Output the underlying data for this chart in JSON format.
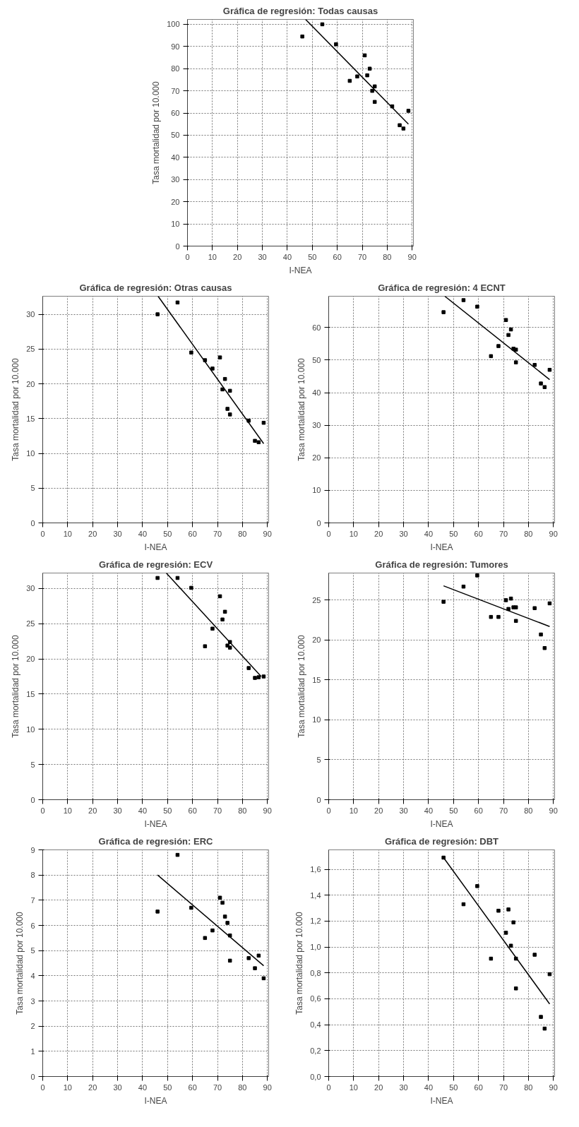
{
  "chart_data": [
    {
      "type": "scatter",
      "title": "Gráfica de regresión: Todas causas",
      "xlabel": "I-NEA",
      "ylabel": "Tasa mortalidad por 10.000",
      "xlim": [
        0,
        90.5
      ],
      "xticks": [
        0,
        10,
        20,
        30,
        40,
        50,
        60,
        70,
        80,
        90
      ],
      "ylim": [
        0,
        102.2
      ],
      "yticks": [
        0,
        10,
        20,
        30,
        40,
        50,
        60,
        70,
        80,
        90,
        100
      ],
      "grid": true,
      "series": [
        {
          "marker": "square",
          "color": "#000000",
          "x": [
            46,
            54,
            59.5,
            65,
            68,
            71,
            72,
            73,
            74,
            75,
            75,
            82,
            85,
            86.5,
            88.5
          ],
          "values": [
            94.5,
            100,
            91,
            74.5,
            76.5,
            86,
            77,
            80,
            70,
            72,
            65,
            63,
            54.5,
            53,
            61
          ]
        },
        {
          "type": "line",
          "color": "#000000",
          "x": [
            47.3,
            88.5
          ],
          "values": [
            102.2,
            55
          ]
        }
      ]
    },
    {
      "type": "scatter",
      "title": "Gráfica de regresión: Otras causas",
      "xlabel": "I-NEA",
      "ylabel": "Tasa mortalidad por 10.000",
      "xlim": [
        0,
        90.5
      ],
      "xticks": [
        0,
        10,
        20,
        30,
        40,
        50,
        60,
        70,
        80,
        90
      ],
      "ylim": [
        0,
        32.6
      ],
      "yticks": [
        0,
        5,
        10,
        15,
        20,
        25,
        30
      ],
      "grid": true,
      "series": [
        {
          "marker": "square",
          "color": "#000000",
          "x": [
            46,
            54,
            59.5,
            65,
            68,
            71,
            72,
            73,
            74,
            75,
            75,
            82.5,
            85,
            86.5,
            88.5
          ],
          "values": [
            30,
            31.7,
            24.5,
            23.4,
            22.2,
            23.8,
            19.2,
            20.7,
            16.4,
            19,
            15.6,
            14.7,
            11.8,
            11.6,
            14.4
          ]
        },
        {
          "type": "line",
          "color": "#000000",
          "x": [
            46.2,
            88.5
          ],
          "values": [
            32.6,
            11.4
          ]
        }
      ]
    },
    {
      "type": "scatter",
      "title": "Gráfica de regresión: 4 ECNT",
      "xlabel": "I-NEA",
      "ylabel": "Tasa mortalidad por 10.000",
      "xlim": [
        0,
        90.5
      ],
      "xticks": [
        0,
        10,
        20,
        30,
        40,
        50,
        60,
        70,
        80,
        90
      ],
      "ylim": [
        0,
        69.6
      ],
      "yticks": [
        0,
        10,
        20,
        30,
        40,
        50,
        60
      ],
      "grid": true,
      "series": [
        {
          "marker": "square",
          "color": "#000000",
          "x": [
            46,
            54,
            59.5,
            65,
            68,
            71,
            72,
            73,
            74,
            75,
            75,
            82.5,
            85,
            86.5,
            88.5
          ],
          "values": [
            64.7,
            68.4,
            66.4,
            51.2,
            54.3,
            62.3,
            57.7,
            59.4,
            53.5,
            53.2,
            49.3,
            48.5,
            42.8,
            41.7,
            47
          ]
        },
        {
          "type": "line",
          "color": "#000000",
          "x": [
            46.5,
            88.5
          ],
          "values": [
            69.6,
            44
          ]
        }
      ]
    },
    {
      "type": "scatter",
      "title": "Gráfica de regresión: ECV",
      "xlabel": "I-NEA",
      "ylabel": "Tasa mortalidad por 10.000",
      "xlim": [
        0,
        90.5
      ],
      "xticks": [
        0,
        10,
        20,
        30,
        40,
        50,
        60,
        70,
        80,
        90
      ],
      "ylim": [
        0,
        32.2
      ],
      "yticks": [
        0,
        5,
        10,
        15,
        20,
        25,
        30
      ],
      "grid": true,
      "series": [
        {
          "marker": "square",
          "color": "#000000",
          "x": [
            46,
            54,
            59.5,
            65,
            68,
            71,
            72,
            73,
            74,
            75,
            75,
            82.5,
            85,
            86.5,
            88.5
          ],
          "values": [
            31.5,
            31.5,
            30.1,
            21.8,
            24.3,
            28.9,
            25.6,
            26.7,
            21.9,
            22.4,
            21.6,
            18.7,
            17.3,
            17.4,
            17.5
          ]
        },
        {
          "type": "line",
          "color": "#000000",
          "x": [
            49.5,
            87.5
          ],
          "values": [
            32.2,
            17.5
          ]
        }
      ]
    },
    {
      "type": "scatter",
      "title": "Gráfica de regresión: Tumores",
      "xlabel": "I-NEA",
      "ylabel": "Tasa mortalidad por 10.000",
      "xlim": [
        0,
        90.5
      ],
      "xticks": [
        0,
        10,
        20,
        30,
        40,
        50,
        60,
        70,
        80,
        90
      ],
      "ylim": [
        0,
        28.4
      ],
      "yticks": [
        0,
        5,
        10,
        15,
        20,
        25
      ],
      "grid": true,
      "series": [
        {
          "marker": "square",
          "color": "#000000",
          "x": [
            46,
            54,
            59.5,
            65,
            68,
            71,
            72,
            73,
            74,
            75,
            75,
            82.5,
            85,
            86.5,
            88.5
          ],
          "values": [
            24.8,
            26.7,
            28.1,
            22.9,
            22.9,
            25,
            23.9,
            25.2,
            24.1,
            24.1,
            22.4,
            24,
            20.7,
            19,
            24.6
          ]
        },
        {
          "type": "line",
          "color": "#000000",
          "x": [
            46,
            88.5
          ],
          "values": [
            26.8,
            21.7
          ]
        }
      ]
    },
    {
      "type": "scatter",
      "title": "Gráfica de regresión: ERC",
      "xlabel": "I-NEA",
      "ylabel": "Tasa mortalidad por 10.000",
      "xlim": [
        0,
        90.5
      ],
      "xticks": [
        0,
        10,
        20,
        30,
        40,
        50,
        60,
        70,
        80,
        90
      ],
      "ylim": [
        0,
        9
      ],
      "yticks": [
        0,
        1,
        2,
        3,
        4,
        5,
        6,
        7,
        8,
        9
      ],
      "grid": true,
      "series": [
        {
          "marker": "square",
          "color": "#000000",
          "x": [
            46,
            54,
            59.5,
            65,
            68,
            71,
            72,
            73,
            74,
            75,
            75,
            82.5,
            85,
            86.5,
            88.5
          ],
          "values": [
            6.55,
            8.8,
            6.7,
            5.5,
            5.8,
            7.1,
            6.9,
            6.35,
            6.1,
            5.6,
            4.6,
            4.7,
            4.3,
            4.8,
            3.9
          ]
        },
        {
          "type": "line",
          "color": "#000000",
          "x": [
            46,
            88.5
          ],
          "values": [
            8,
            4.4
          ]
        }
      ]
    },
    {
      "type": "scatter",
      "title": "Gráfica de regresión: DBT",
      "xlabel": "I-NEA",
      "ylabel": "Tasa mortalidad por 10.000",
      "xlim": [
        0,
        90.5
      ],
      "xticks": [
        0,
        10,
        20,
        30,
        40,
        50,
        60,
        70,
        80,
        90
      ],
      "ylim": [
        0,
        1.75
      ],
      "yticks": [
        {
          "value": 0,
          "label": "0,0"
        },
        {
          "value": 0.2,
          "label": "0,2"
        },
        {
          "value": 0.4,
          "label": "0,4"
        },
        {
          "value": 0.6,
          "label": "0,6"
        },
        {
          "value": 0.8,
          "label": "0,8"
        },
        {
          "value": 1.0,
          "label": "1,0"
        },
        {
          "value": 1.2,
          "label": "1,2"
        },
        {
          "value": 1.4,
          "label": "1,4"
        },
        {
          "value": 1.6,
          "label": "1,6"
        }
      ],
      "grid": true,
      "series": [
        {
          "marker": "square",
          "color": "#000000",
          "x": [
            46,
            54,
            59.5,
            65,
            68,
            71,
            72,
            73,
            74,
            75,
            75,
            82.5,
            85,
            86.5,
            88.5
          ],
          "values": [
            1.69,
            1.33,
            1.47,
            0.91,
            1.28,
            1.11,
            1.29,
            1.01,
            1.19,
            0.91,
            0.68,
            0.94,
            0.46,
            0.37,
            0.79
          ]
        },
        {
          "type": "line",
          "color": "#000000",
          "x": [
            46,
            88.5
          ],
          "values": [
            1.69,
            0.56
          ]
        }
      ]
    }
  ]
}
